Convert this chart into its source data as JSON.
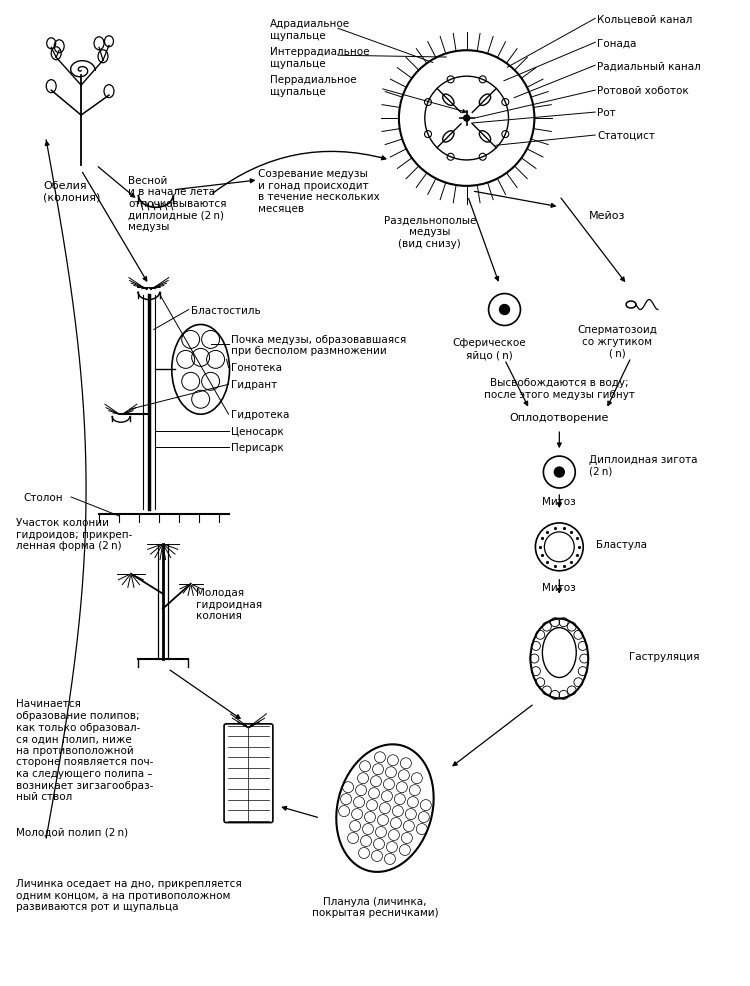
{
  "bg_color": "#ffffff",
  "labels": {
    "obelia": "Обелия\n(колония)",
    "spring": "Весной\nи в начале лета\nотпочковываются\nдиплоидные (2 n)\nмедузы",
    "ripening": "Созревание медузы\nи гонад происходит\nв течение нескольких\nмесяцев",
    "medusa_label": "Раздельнополые\nмедузы\n(вид снизу)",
    "adradial": "Адрадиальное\nщупальце",
    "interradial": "Интеррадиальное\nщупальце",
    "perradial": "Перрадиальное\nщупальце",
    "ring_canal": "Кольцевой канал",
    "gonad": "Гонада",
    "radial_canal": "Радиальный канал",
    "oral_proboscis": "Ротовой хоботок",
    "mouth": "Рот",
    "statocyst": "Статоцист",
    "blastostyle": "Бластостиль",
    "medusa_bud": "Почка медузы, образовавшаяся\nпри бесполом размножении",
    "gonoteka": "Гонотека",
    "hydrant": "Гидрант",
    "hydroteka": "Гидротека",
    "coenosark": "Ценосарк",
    "perisark": "Перисарк",
    "stolon": "Столон",
    "colony_part": "Участок колонии\nгидроидов; прикреп-\nленная форма (2 n)",
    "young_colony": "Молодая\nгидроидная\nколония",
    "polyp_formation": "Начинается\nобразование полипов;\nкак только образовал-\nся один полип, ниже\nна противоположной\nстороне появляется поч-\nка следующего полипа –\nвозникает зигзагообраз-\nный ствол",
    "young_polyp": "Молодой полип (2 n)",
    "larva_settles": "Личинка оседает на дно, прикрепляется\nодним концом, а на противоположном\nразвиваются рот и щупальца",
    "planula": "Планула (личинка,\nпокрытая ресничками)",
    "spherical_egg": "Сферическое\nяйцо ( n)",
    "sperm": "Сперматозоид\nсо жгутиком\n( n)",
    "released": "Высвобождаются в воду;\nпосле этого медузы гибнут",
    "meiosis": "Мейоз",
    "fertilization": "Оплодотворение",
    "diploid_zygote": "Диплоидная зигота\n(2 n)",
    "mitosis1": "Митоз",
    "blastula": "Бластула",
    "mitosis2": "Митоз",
    "gastrulation": "Гаструляция"
  }
}
